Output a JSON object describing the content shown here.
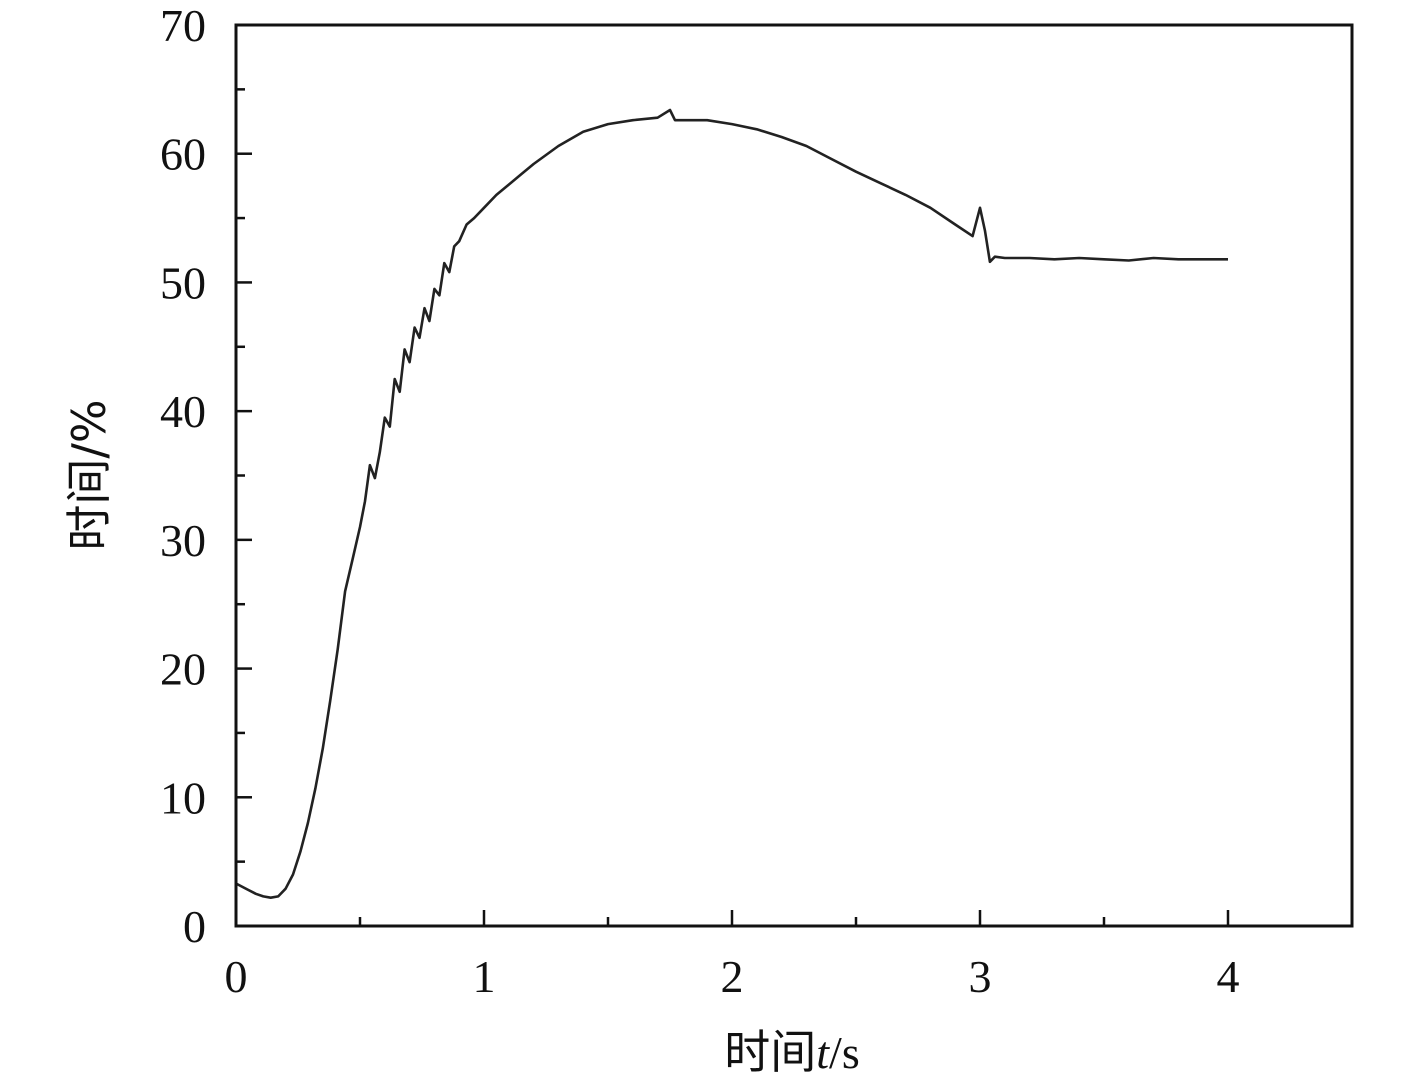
{
  "chart_data": {
    "type": "line",
    "title": "",
    "xlabel": {
      "prefix": "时间",
      "var": "t",
      "unit": "/s"
    },
    "ylabel": "时间/%",
    "xlim": [
      0,
      4.5
    ],
    "ylim": [
      0,
      70
    ],
    "xticks": [
      0,
      1,
      2,
      3,
      4
    ],
    "xminor": [
      0.5,
      1.5,
      2.5,
      3.5
    ],
    "yticks": [
      0,
      10,
      20,
      30,
      40,
      50,
      60,
      70
    ],
    "yminor": [
      5,
      15,
      25,
      35,
      45,
      55,
      65
    ],
    "grid": false,
    "legend": "none",
    "line_color": "#222222",
    "series": [
      {
        "x": [
          0.0,
          0.02,
          0.05,
          0.08,
          0.11,
          0.14,
          0.17,
          0.2,
          0.23,
          0.26,
          0.29,
          0.32,
          0.35,
          0.38,
          0.41,
          0.44,
          0.47,
          0.5,
          0.52,
          0.54,
          0.56,
          0.58,
          0.6,
          0.62,
          0.64,
          0.66,
          0.68,
          0.7,
          0.72,
          0.74,
          0.76,
          0.78,
          0.8,
          0.82,
          0.84,
          0.86,
          0.88,
          0.9,
          0.93,
          0.96,
          1.0,
          1.05,
          1.1,
          1.15,
          1.2,
          1.3,
          1.4,
          1.5,
          1.6,
          1.7,
          1.75,
          1.77,
          1.8,
          1.9,
          2.0,
          2.1,
          2.2,
          2.3,
          2.4,
          2.5,
          2.6,
          2.7,
          2.8,
          2.9,
          2.97,
          3.0,
          3.02,
          3.04,
          3.06,
          3.1,
          3.2,
          3.3,
          3.4,
          3.5,
          3.6,
          3.7,
          3.8,
          3.9,
          4.0
        ],
        "y": [
          3.3,
          3.1,
          2.8,
          2.5,
          2.3,
          2.2,
          2.3,
          2.9,
          4.0,
          5.8,
          8.0,
          10.7,
          13.8,
          17.5,
          21.5,
          26.0,
          28.5,
          31.0,
          33.0,
          35.8,
          34.8,
          36.8,
          39.5,
          38.8,
          42.5,
          41.5,
          44.8,
          43.8,
          46.5,
          45.7,
          48.0,
          47.0,
          49.5,
          49.0,
          51.5,
          50.8,
          52.8,
          53.2,
          54.5,
          55.0,
          55.8,
          56.8,
          57.6,
          58.4,
          59.2,
          60.6,
          61.7,
          62.3,
          62.6,
          62.8,
          63.4,
          62.6,
          62.6,
          62.6,
          62.3,
          61.9,
          61.3,
          60.6,
          59.6,
          58.6,
          57.7,
          56.8,
          55.8,
          54.5,
          53.6,
          55.8,
          54.0,
          51.6,
          52.0,
          51.9,
          51.9,
          51.8,
          51.9,
          51.8,
          51.7,
          51.9,
          51.8,
          51.8,
          51.8
        ]
      }
    ]
  }
}
